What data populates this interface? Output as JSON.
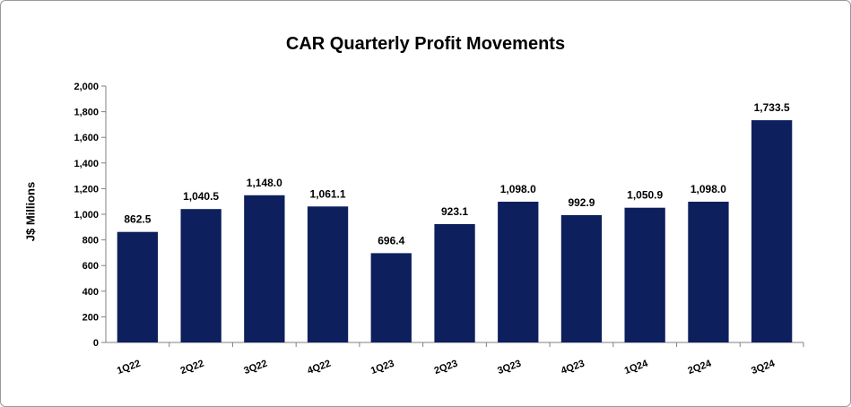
{
  "chart_data": {
    "type": "bar",
    "title": "CAR Quarterly Profit Movements",
    "ylabel": "J$ Millions",
    "xlabel": "",
    "ylim": [
      0,
      2000
    ],
    "yticks": [
      0,
      200,
      400,
      600,
      800,
      1000,
      1200,
      1400,
      1600,
      1800,
      2000
    ],
    "ytick_labels": [
      "0",
      "200",
      "400",
      "600",
      "800",
      "1,000",
      "1,200",
      "1,400",
      "1,600",
      "1,800",
      "2,000"
    ],
    "categories": [
      "1Q22",
      "2Q22",
      "3Q22",
      "4Q22",
      "1Q23",
      "2Q23",
      "3Q23",
      "4Q23",
      "1Q24",
      "2Q24",
      "3Q24"
    ],
    "values": [
      862.5,
      1040.5,
      1148.0,
      1061.1,
      696.4,
      923.1,
      1098.0,
      992.9,
      1050.9,
      1098.0,
      1733.5
    ],
    "data_labels": [
      "862.5",
      "1,040.5",
      "1,148.0",
      "1,061.1",
      "696.4",
      "923.1",
      "1,098.0",
      "992.9",
      "1,050.9",
      "1,098.0",
      "1,733.5"
    ],
    "bar_color": "#0d1f5c",
    "grid": false,
    "legend": "none"
  }
}
